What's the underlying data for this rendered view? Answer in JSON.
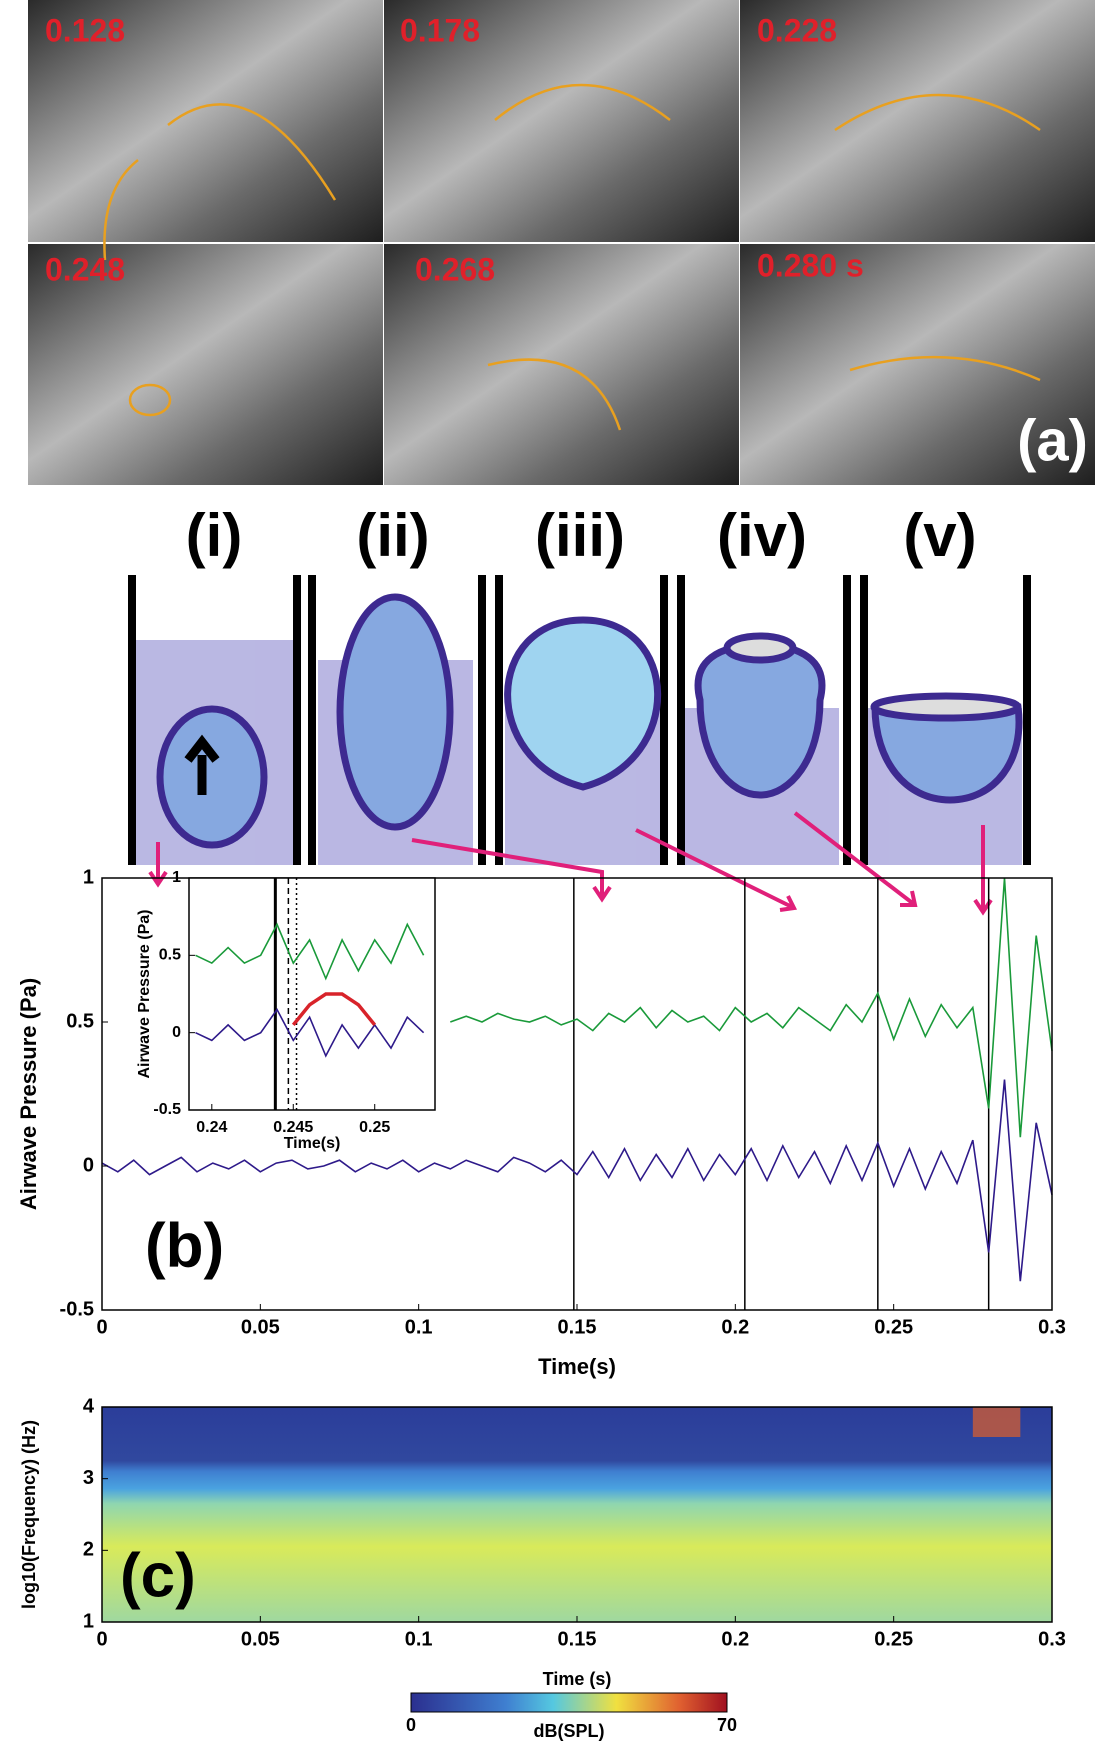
{
  "photos": {
    "timestamps": [
      "0.128",
      "0.178",
      "0.228",
      "0.248",
      "0.268",
      "0.280 s"
    ],
    "label": "(a)"
  },
  "schematic": {
    "labels": [
      "(i)",
      "(ii)",
      "(iii)",
      "(iv)",
      "(v)"
    ]
  },
  "chart_data": [
    {
      "type": "line",
      "label": "(b)",
      "xlabel": "Time(s)",
      "ylabel": "Airwave Pressure (Pa)",
      "xlim": [
        0,
        0.3
      ],
      "ylim": [
        -0.5,
        1
      ],
      "xticks": [
        0,
        0.05,
        0.1,
        0.15,
        0.2,
        0.25,
        0.3
      ],
      "yticks": [
        -0.5,
        0,
        0.5,
        1
      ],
      "vlines": [
        0.149,
        0.203,
        0.245,
        0.28
      ],
      "x": [
        0,
        0.005,
        0.01,
        0.015,
        0.02,
        0.025,
        0.03,
        0.035,
        0.04,
        0.045,
        0.05,
        0.055,
        0.06,
        0.065,
        0.07,
        0.075,
        0.08,
        0.085,
        0.09,
        0.095,
        0.1,
        0.105,
        0.11,
        0.115,
        0.12,
        0.125,
        0.13,
        0.135,
        0.14,
        0.145,
        0.15,
        0.155,
        0.16,
        0.165,
        0.17,
        0.175,
        0.18,
        0.185,
        0.19,
        0.195,
        0.2,
        0.205,
        0.21,
        0.215,
        0.22,
        0.225,
        0.23,
        0.235,
        0.24,
        0.245,
        0.25,
        0.255,
        0.26,
        0.265,
        0.27,
        0.275,
        0.28,
        0.285,
        0.29,
        0.295,
        0.3
      ],
      "series": [
        {
          "color": "#2e1a8a",
          "values": [
            0.01,
            -0.02,
            0.02,
            -0.03,
            0,
            0.03,
            -0.02,
            0.01,
            -0.01,
            0.02,
            -0.02,
            0.01,
            0.02,
            -0.01,
            0,
            0.02,
            -0.02,
            0.01,
            -0.01,
            0.02,
            -0.02,
            0.01,
            -0.01,
            0.02,
            0,
            -0.02,
            0.03,
            0.01,
            -0.02,
            0.02,
            -0.03,
            0.05,
            -0.04,
            0.06,
            -0.05,
            0.04,
            -0.04,
            0.06,
            -0.05,
            0.04,
            -0.03,
            0.06,
            -0.05,
            0.07,
            -0.04,
            0.05,
            -0.06,
            0.07,
            -0.05,
            0.08,
            -0.07,
            0.06,
            -0.08,
            0.05,
            -0.06,
            0.09,
            -0.3,
            0.3,
            -0.4,
            0.15,
            -0.1
          ]
        },
        {
          "color": "#1a9a3a",
          "values": [
            null,
            null,
            null,
            null,
            null,
            null,
            null,
            null,
            null,
            null,
            null,
            null,
            null,
            null,
            null,
            null,
            null,
            null,
            null,
            null,
            null,
            null,
            0.5,
            0.52,
            0.5,
            0.53,
            0.51,
            0.5,
            0.52,
            0.49,
            0.51,
            0.47,
            0.53,
            0.5,
            0.55,
            0.48,
            0.54,
            0.5,
            0.52,
            0.47,
            0.55,
            0.5,
            0.53,
            0.48,
            0.55,
            0.51,
            0.47,
            0.56,
            0.5,
            0.6,
            0.44,
            0.58,
            0.45,
            0.56,
            0.48,
            0.55,
            0.2,
            1.0,
            0.1,
            0.8,
            0.4
          ]
        }
      ]
    },
    {
      "type": "line",
      "xlabel": "Time(s)",
      "ylabel": "Airwave Pressure (Pa)",
      "xlim": [
        0.2386,
        0.2537
      ],
      "ylim": [
        -0.5,
        1
      ],
      "xticks": [
        0.24,
        0.245,
        0.25
      ],
      "yticks": [
        -0.5,
        0,
        0.5,
        1
      ],
      "vlines": [
        0.2439,
        0.2447,
        0.2452
      ],
      "x": [
        0.239,
        0.24,
        0.241,
        0.242,
        0.243,
        0.244,
        0.245,
        0.246,
        0.247,
        0.248,
        0.249,
        0.25,
        0.251,
        0.252,
        0.253
      ],
      "series": [
        {
          "color": "#1a9a3a",
          "values": [
            0.5,
            0.45,
            0.55,
            0.45,
            0.5,
            0.7,
            0.45,
            0.6,
            0.35,
            0.6,
            0.4,
            0.6,
            0.45,
            0.7,
            0.5
          ]
        },
        {
          "color": "#2e1a8a",
          "values": [
            0,
            -0.05,
            0.05,
            -0.05,
            0,
            0.15,
            -0.05,
            0.1,
            -0.15,
            0.05,
            -0.1,
            0.05,
            -0.1,
            0.1,
            0
          ]
        },
        {
          "color": "#d8232a",
          "values": [
            null,
            null,
            null,
            null,
            null,
            null,
            0.05,
            0.18,
            0.25,
            0.25,
            0.18,
            0.05,
            null,
            null,
            null
          ]
        }
      ]
    },
    {
      "type": "heatmap",
      "label": "(c)",
      "xlabel": "Time (s)",
      "ylabel": "log10(Frequency) (Hz)",
      "xlim": [
        0,
        0.3
      ],
      "ylim": [
        1,
        4
      ],
      "xticks": [
        0,
        0.05,
        0.1,
        0.15,
        0.2,
        0.25,
        0.3
      ],
      "yticks": [
        1,
        2,
        3,
        4
      ],
      "colorbar": {
        "label": "dB(SPL)",
        "lim": [
          0,
          70
        ],
        "ticks": [
          0,
          70
        ]
      }
    }
  ]
}
